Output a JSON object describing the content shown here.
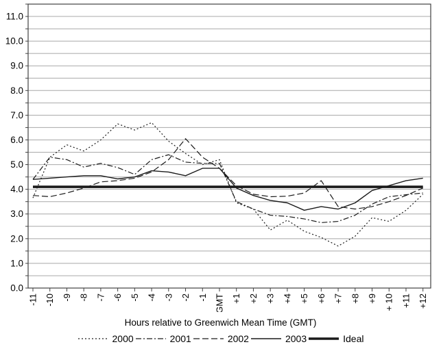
{
  "chart_data": {
    "type": "line",
    "title": "",
    "xlabel": "Hours relative to Greenwich Mean Time (GMT)",
    "ylabel": "",
    "ylim": [
      0,
      11.5
    ],
    "grid": "horizontal, every 0.5",
    "legend_position": "bottom",
    "x_values": [
      -11,
      -10,
      -9,
      -8,
      -7,
      -6,
      -5,
      -4,
      -3,
      -2,
      -1,
      0,
      1,
      2,
      3,
      4,
      5,
      6,
      7,
      8,
      9,
      10,
      11,
      12
    ],
    "x_tick_labels": [
      "-11",
      "-10",
      "-9",
      "-8",
      "-7",
      "-6",
      "-5",
      "-4",
      "-3",
      "-2",
      "-1",
      "GMT",
      "+1",
      "+2",
      "+3",
      "+4",
      "+5",
      "+6",
      "+7",
      "+8",
      "+9",
      "+ 10",
      "+11",
      "+12"
    ],
    "y_tick_labels": [
      "0.0",
      "1.0",
      "2.0",
      "3.0",
      "4.0",
      "5.0",
      "6.0",
      "7.0",
      "8.0",
      "9.0",
      "10.0",
      "11.0"
    ],
    "series": [
      {
        "name": "2000",
        "style": "dotted",
        "values": [
          3.65,
          5.3,
          5.8,
          5.55,
          6.0,
          6.65,
          6.4,
          6.7,
          5.95,
          5.45,
          5.0,
          5.2,
          3.45,
          3.2,
          2.35,
          2.75,
          2.3,
          2.05,
          1.7,
          2.1,
          2.85,
          2.7,
          3.15,
          3.8
        ]
      },
      {
        "name": "2001",
        "style": "dash-dot",
        "values": [
          4.4,
          5.3,
          5.2,
          4.9,
          5.05,
          4.88,
          4.6,
          5.2,
          5.4,
          5.1,
          5.05,
          5.05,
          3.5,
          3.2,
          2.95,
          2.9,
          2.8,
          2.65,
          2.7,
          2.95,
          3.4,
          3.7,
          3.78,
          3.85
        ]
      },
      {
        "name": "2002",
        "style": "dashed",
        "values": [
          3.75,
          3.7,
          3.85,
          4.05,
          4.3,
          4.35,
          4.45,
          4.7,
          5.2,
          6.05,
          5.3,
          4.85,
          4.15,
          3.8,
          3.7,
          3.72,
          3.85,
          4.35,
          3.3,
          3.2,
          3.3,
          3.5,
          3.75,
          4.05
        ]
      },
      {
        "name": "2003",
        "style": "solid-thin",
        "values": [
          4.4,
          4.45,
          4.5,
          4.55,
          4.55,
          4.42,
          4.5,
          4.75,
          4.7,
          4.55,
          4.85,
          4.85,
          4.05,
          3.75,
          3.55,
          3.45,
          3.15,
          3.3,
          3.2,
          3.45,
          3.95,
          4.15,
          4.35,
          4.45
        ]
      },
      {
        "name": "Ideal",
        "style": "solid-thick",
        "values": [
          4.1,
          4.1,
          4.1,
          4.1,
          4.1,
          4.1,
          4.1,
          4.1,
          4.1,
          4.1,
          4.1,
          4.1,
          4.1,
          4.1,
          4.1,
          4.1,
          4.1,
          4.1,
          4.1,
          4.1,
          4.1,
          4.1,
          4.1,
          4.1
        ]
      }
    ],
    "colors": {
      "line": "#1a1a1a",
      "grid": "#a8a8a8",
      "axis": "#404040",
      "background": "#ffffff"
    }
  }
}
